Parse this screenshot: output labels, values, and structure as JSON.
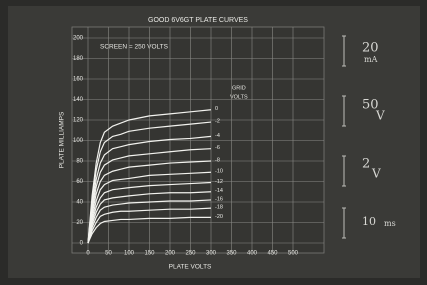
{
  "chart_data": {
    "type": "line",
    "title": "GOOD 6V6GT PLATE CURVES",
    "annotation": "SCREEN = 250 VOLTS",
    "xlabel": "PLATE VOLTS",
    "ylabel": "PLATE MILLIAMPS",
    "legend_title_lines": [
      "GRID",
      "VOLTS"
    ],
    "grid": true,
    "xlim": [
      0,
      500
    ],
    "xticks": [
      0,
      50,
      100,
      150,
      200,
      250,
      300,
      350,
      400,
      450,
      500
    ],
    "ylim": [
      0,
      200
    ],
    "yticks": [
      0,
      20,
      40,
      60,
      80,
      100,
      120,
      140,
      160,
      180,
      200
    ],
    "x": [
      0,
      10,
      20,
      30,
      40,
      60,
      80,
      100,
      150,
      200,
      250,
      300
    ],
    "series": [
      {
        "name": "0",
        "color": "#f2f2ee",
        "values": [
          0,
          46,
          78,
          98,
          108,
          114,
          117,
          120,
          124,
          126,
          128,
          130
        ]
      },
      {
        "name": "-2",
        "color": "#f2f2ee",
        "values": [
          0,
          41,
          71,
          89,
          98,
          104,
          106,
          109,
          112,
          114,
          116,
          118
        ]
      },
      {
        "name": "-4",
        "color": "#f2f2ee",
        "values": [
          0,
          36,
          62,
          78,
          86,
          92,
          94,
          96,
          99,
          101,
          102,
          104
        ]
      },
      {
        "name": "-6",
        "color": "#f2f2ee",
        "values": [
          0,
          32,
          55,
          69,
          76,
          81,
          83,
          85,
          87,
          89,
          91,
          92
        ]
      },
      {
        "name": "-8",
        "color": "#f2f2ee",
        "values": [
          0,
          28,
          48,
          60,
          66,
          70,
          72,
          74,
          76,
          78,
          79,
          80
        ]
      },
      {
        "name": "-10",
        "color": "#f2f2ee",
        "values": [
          0,
          24,
          41,
          52,
          57,
          61,
          62,
          63,
          66,
          67,
          68,
          69
        ]
      },
      {
        "name": "-12",
        "color": "#f2f2ee",
        "values": [
          0,
          21,
          35,
          44,
          49,
          52,
          53,
          54,
          56,
          57,
          58,
          59
        ]
      },
      {
        "name": "-14",
        "color": "#f2f2ee",
        "values": [
          0,
          18,
          30,
          38,
          42,
          44,
          45,
          46,
          48,
          49,
          49,
          50
        ]
      },
      {
        "name": "-16",
        "color": "#f2f2ee",
        "values": [
          0,
          15,
          25,
          32,
          35,
          37,
          38,
          39,
          40,
          41,
          41,
          42
        ]
      },
      {
        "name": "-18",
        "color": "#f2f2ee",
        "values": [
          0,
          12,
          20,
          26,
          28,
          30,
          31,
          31,
          32,
          33,
          33,
          34
        ]
      },
      {
        "name": "-20",
        "color": "#f2f2ee",
        "values": [
          0,
          9,
          15,
          19,
          21,
          22,
          23,
          23,
          24,
          24,
          25,
          25
        ]
      }
    ]
  },
  "readouts": [
    {
      "value": "20",
      "unit": "mA"
    },
    {
      "value": "50",
      "unit": "V"
    },
    {
      "value": "2",
      "unit": "V"
    },
    {
      "value": "10",
      "unit": "ms"
    }
  ]
}
